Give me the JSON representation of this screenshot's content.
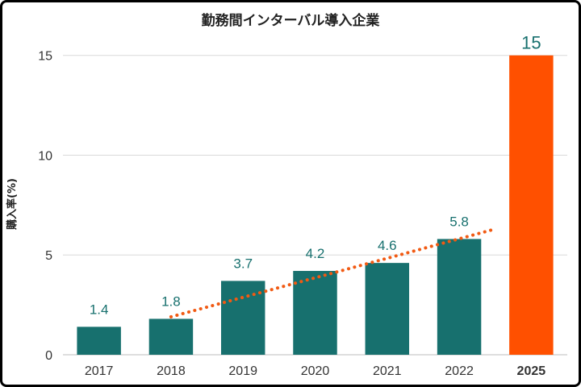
{
  "chart_data": {
    "type": "bar",
    "title": "勤務間インターバル導入企業",
    "xlabel": "",
    "ylabel": "購入率(%)",
    "categories": [
      "2017",
      "2018",
      "2019",
      "2020",
      "2021",
      "2022",
      "2025"
    ],
    "values": [
      1.4,
      1.8,
      3.7,
      4.2,
      4.6,
      5.8,
      15
    ],
    "data_labels": [
      "1.4",
      "1.8",
      "3.7",
      "4.2",
      "4.6",
      "5.8",
      "15"
    ],
    "ylim": [
      0,
      16.2
    ],
    "yticks": [
      0,
      5,
      10,
      15
    ],
    "grid": true,
    "highlight_index": 6,
    "trendline": {
      "style": "dotted",
      "from": {
        "category": "2018",
        "value": 1.9
      },
      "to": {
        "category": "2022",
        "value": 6.3
      }
    },
    "colors": {
      "bar": "#17706e",
      "highlight": "#ff5000",
      "trendline": "#f15a13",
      "label": "#17706e",
      "grid": "#d9d9d9"
    }
  }
}
